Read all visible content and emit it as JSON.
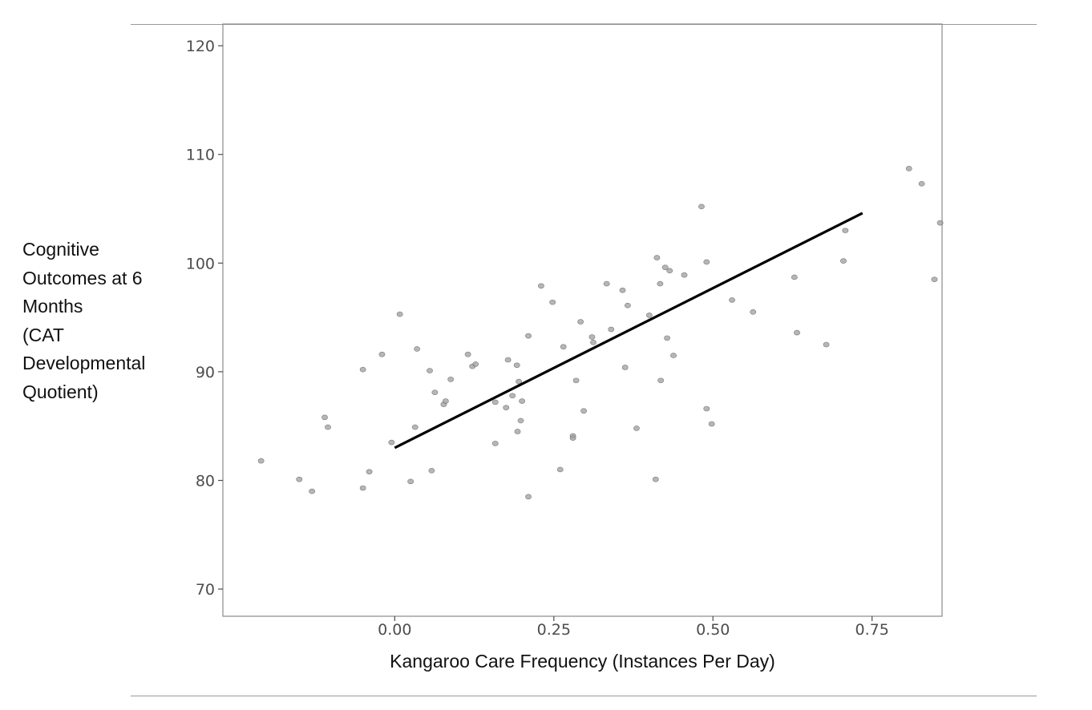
{
  "chart_data": {
    "type": "scatter",
    "title": "",
    "xlabel": "Kangaroo Care Frequency (Instances Per Day)",
    "ylabel": "Cognitive\nOutcomes at 6\nMonths\n(CAT\nDevelopmental\nQuotient)",
    "xlim": [
      -0.27,
      0.86
    ],
    "ylim": [
      67.5,
      122
    ],
    "x_ticks": [
      0.0,
      0.25,
      0.5,
      0.75
    ],
    "x_tick_labels": [
      "0.00",
      "0.25",
      "0.50",
      "0.75"
    ],
    "y_ticks": [
      70,
      80,
      90,
      100,
      110,
      120
    ],
    "y_tick_labels": [
      "70",
      "80",
      "90",
      "100",
      "110",
      "120"
    ],
    "grid": false,
    "legend": "none",
    "point_color": "#9e9e9e",
    "line_color": "#000000",
    "points": [
      {
        "x": -0.21,
        "y": 81.8
      },
      {
        "x": -0.15,
        "y": 80.1
      },
      {
        "x": -0.13,
        "y": 79.0
      },
      {
        "x": -0.11,
        "y": 85.8
      },
      {
        "x": -0.105,
        "y": 84.9
      },
      {
        "x": -0.05,
        "y": 79.3
      },
      {
        "x": -0.05,
        "y": 90.2
      },
      {
        "x": -0.04,
        "y": 80.8
      },
      {
        "x": -0.02,
        "y": 91.6
      },
      {
        "x": -0.005,
        "y": 83.5
      },
      {
        "x": 0.008,
        "y": 95.3
      },
      {
        "x": 0.025,
        "y": 79.9
      },
      {
        "x": 0.032,
        "y": 84.9
      },
      {
        "x": 0.035,
        "y": 92.1
      },
      {
        "x": 0.055,
        "y": 90.1
      },
      {
        "x": 0.058,
        "y": 80.9
      },
      {
        "x": 0.063,
        "y": 88.1
      },
      {
        "x": 0.077,
        "y": 87.0
      },
      {
        "x": 0.08,
        "y": 87.3
      },
      {
        "x": 0.088,
        "y": 89.3
      },
      {
        "x": 0.115,
        "y": 91.6
      },
      {
        "x": 0.122,
        "y": 90.5
      },
      {
        "x": 0.127,
        "y": 90.7
      },
      {
        "x": 0.158,
        "y": 87.2
      },
      {
        "x": 0.158,
        "y": 83.4
      },
      {
        "x": 0.175,
        "y": 86.7
      },
      {
        "x": 0.178,
        "y": 91.1
      },
      {
        "x": 0.185,
        "y": 87.8
      },
      {
        "x": 0.192,
        "y": 90.6
      },
      {
        "x": 0.193,
        "y": 84.5
      },
      {
        "x": 0.195,
        "y": 89.1
      },
      {
        "x": 0.198,
        "y": 85.5
      },
      {
        "x": 0.2,
        "y": 87.3
      },
      {
        "x": 0.21,
        "y": 93.3
      },
      {
        "x": 0.21,
        "y": 78.5
      },
      {
        "x": 0.23,
        "y": 97.9
      },
      {
        "x": 0.248,
        "y": 96.4
      },
      {
        "x": 0.26,
        "y": 81.0
      },
      {
        "x": 0.265,
        "y": 92.3
      },
      {
        "x": 0.28,
        "y": 84.1
      },
      {
        "x": 0.28,
        "y": 83.9
      },
      {
        "x": 0.285,
        "y": 89.2
      },
      {
        "x": 0.292,
        "y": 94.6
      },
      {
        "x": 0.297,
        "y": 86.4
      },
      {
        "x": 0.31,
        "y": 93.2
      },
      {
        "x": 0.312,
        "y": 92.7
      },
      {
        "x": 0.333,
        "y": 98.1
      },
      {
        "x": 0.34,
        "y": 93.9
      },
      {
        "x": 0.358,
        "y": 97.5
      },
      {
        "x": 0.362,
        "y": 90.4
      },
      {
        "x": 0.366,
        "y": 96.1
      },
      {
        "x": 0.38,
        "y": 84.8
      },
      {
        "x": 0.4,
        "y": 95.2
      },
      {
        "x": 0.41,
        "y": 80.1
      },
      {
        "x": 0.412,
        "y": 100.5
      },
      {
        "x": 0.417,
        "y": 98.1
      },
      {
        "x": 0.418,
        "y": 89.2
      },
      {
        "x": 0.425,
        "y": 99.6
      },
      {
        "x": 0.428,
        "y": 93.1
      },
      {
        "x": 0.432,
        "y": 99.3
      },
      {
        "x": 0.438,
        "y": 91.5
      },
      {
        "x": 0.455,
        "y": 98.9
      },
      {
        "x": 0.482,
        "y": 105.2
      },
      {
        "x": 0.49,
        "y": 86.6
      },
      {
        "x": 0.49,
        "y": 100.1
      },
      {
        "x": 0.498,
        "y": 85.2
      },
      {
        "x": 0.53,
        "y": 96.6
      },
      {
        "x": 0.563,
        "y": 95.5
      },
      {
        "x": 0.628,
        "y": 98.7
      },
      {
        "x": 0.632,
        "y": 93.6
      },
      {
        "x": 0.678,
        "y": 92.5
      },
      {
        "x": 0.705,
        "y": 100.2
      },
      {
        "x": 0.708,
        "y": 103.0
      },
      {
        "x": 0.808,
        "y": 108.7
      },
      {
        "x": 0.828,
        "y": 107.3
      },
      {
        "x": 0.848,
        "y": 98.5
      },
      {
        "x": 0.857,
        "y": 103.7
      }
    ],
    "fit_line": {
      "x": [
        0.0,
        0.735
      ],
      "y": [
        83.0,
        104.6
      ]
    }
  }
}
